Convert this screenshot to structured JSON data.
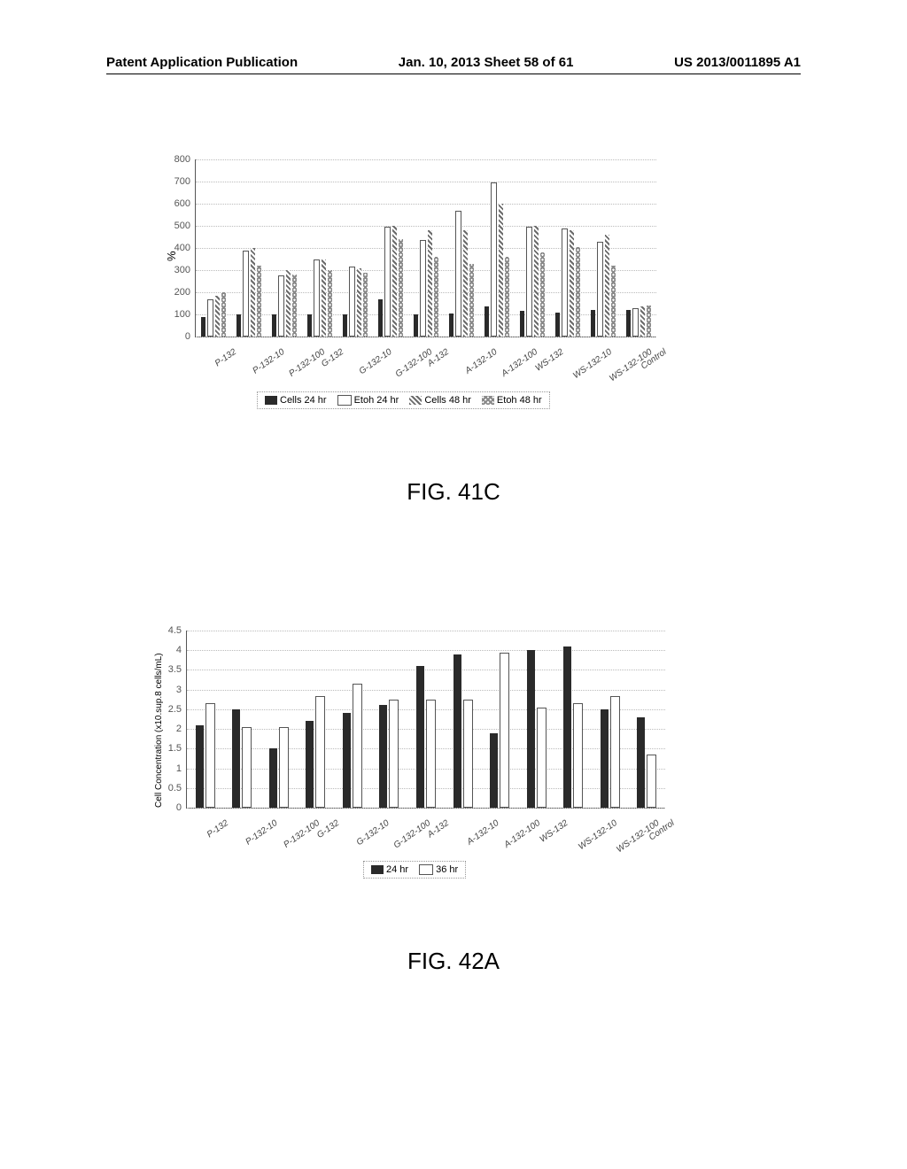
{
  "header": {
    "left": "Patent Application Publication",
    "center": "Jan. 10, 2013  Sheet 58 of 61",
    "right": "US 2013/0011895 A1"
  },
  "fig41c": {
    "label": "FIG. 41C",
    "ylabel": "%",
    "ylim": [
      0,
      800
    ],
    "ytick_step": 100,
    "categories": [
      "P-132",
      "P-132-10",
      "P-132-100",
      "G-132",
      "G-132-10",
      "G-132-100",
      "A-132",
      "A-132-10",
      "A-132-100",
      "WS-132",
      "WS-132-10",
      "WS-132-100",
      "Control"
    ],
    "series": [
      {
        "name": "Cells 24 hr",
        "color": "#2a2a2a",
        "pattern": "solid",
        "values": [
          90,
          100,
          100,
          100,
          100,
          170,
          100,
          105,
          135,
          115,
          110,
          120,
          120
        ]
      },
      {
        "name": "Etoh 24 hr",
        "color": "#ffffff",
        "pattern": "outline",
        "values": [
          160,
          380,
          270,
          340,
          310,
          490,
          430,
          560,
          690,
          490,
          480,
          420,
          120
        ]
      },
      {
        "name": "Cells 48 hr",
        "color": "#6b6b6b",
        "pattern": "hatch",
        "values": [
          185,
          400,
          300,
          350,
          310,
          500,
          480,
          480,
          600,
          500,
          480,
          460,
          135
        ]
      },
      {
        "name": "Etoh 48 hr",
        "color": "#8a8a8a",
        "pattern": "crosshatch",
        "values": [
          200,
          320,
          280,
          300,
          290,
          440,
          360,
          330,
          360,
          380,
          405,
          320,
          140
        ]
      }
    ],
    "legend": [
      "Cells 24 hr",
      "Etoh 24 hr",
      "Cells 48 hr",
      "Etoh 48 hr"
    ]
  },
  "fig42a": {
    "label": "FIG. 42A",
    "ylabel": "Cell Concentration (x10.sup.8 cells/mL)",
    "ylim": [
      0,
      4.5
    ],
    "ytick_step": 0.5,
    "categories": [
      "P-132",
      "P-132-10",
      "P-132-100",
      "G-132",
      "G-132-10",
      "G-132-100",
      "A-132",
      "A-132-10",
      "A-132-100",
      "WS-132",
      "WS-132-10",
      "WS-132-100",
      "Control"
    ],
    "series": [
      {
        "name": "24 hr",
        "color": "#2a2a2a",
        "pattern": "solid",
        "values": [
          2.1,
          2.5,
          1.5,
          2.2,
          2.4,
          2.6,
          3.6,
          3.9,
          1.9,
          4.0,
          4.1,
          2.5,
          2.3
        ]
      },
      {
        "name": "36 hr",
        "color": "#ffffff",
        "pattern": "outline",
        "values": [
          2.6,
          2.0,
          2.0,
          2.8,
          3.1,
          2.7,
          2.7,
          2.7,
          3.9,
          2.5,
          2.6,
          2.8,
          1.3
        ]
      }
    ],
    "legend": [
      "24 hr",
      "36 hr"
    ]
  },
  "colors": {
    "axis": "#555555",
    "grid": "#bbbbbb",
    "tick_text": "#555555",
    "bg": "#ffffff"
  }
}
